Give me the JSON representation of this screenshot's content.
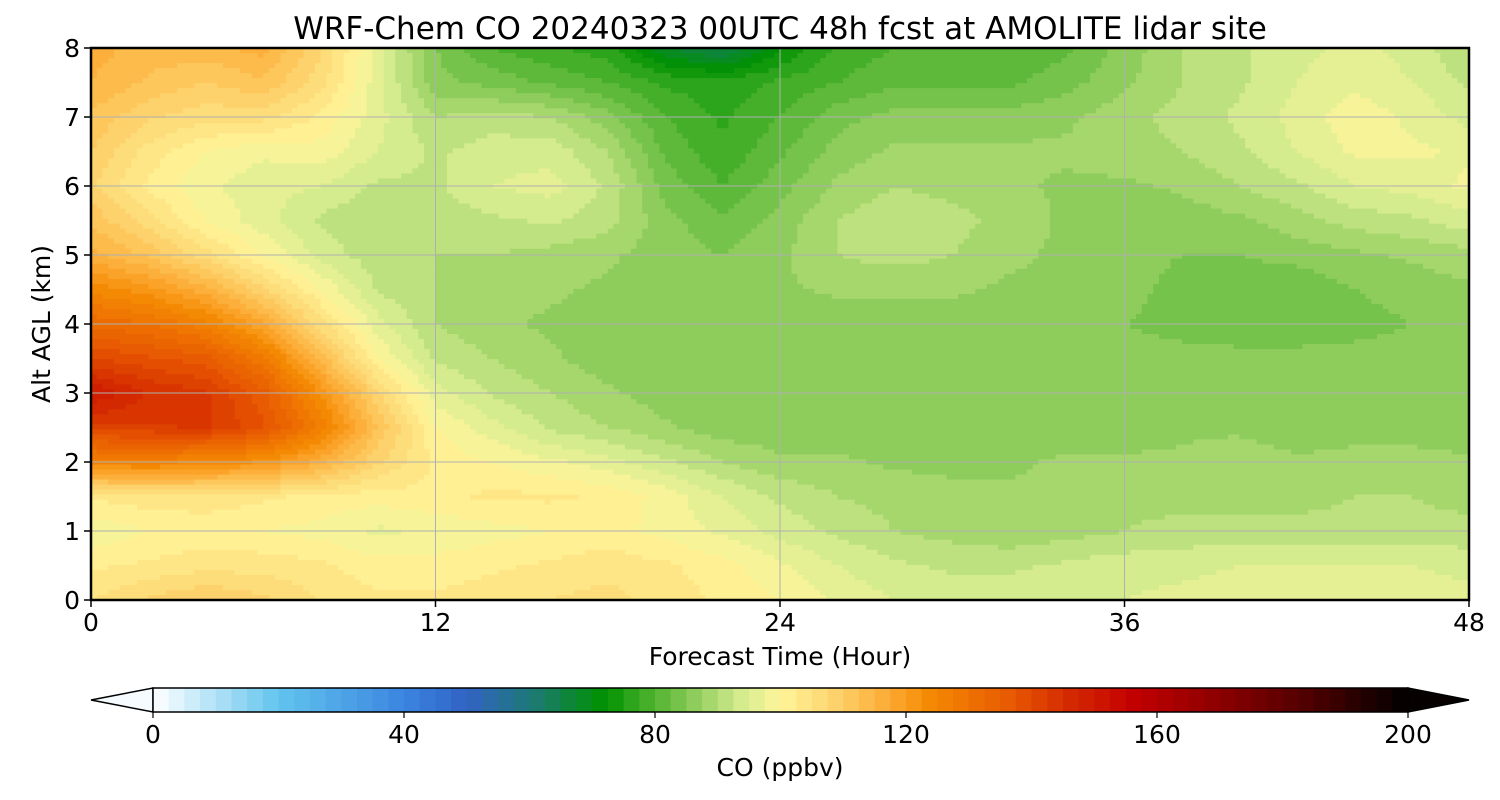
{
  "chart_data": {
    "type": "heatmap",
    "plot_kind": "filled-contour time-height cross-section",
    "title": "WRF-Chem CO  20240323 00UTC 48h fcst at AMOLITE lidar site",
    "xlabel": "Forecast Time (Hour)",
    "ylabel": "Alt AGL (km)",
    "xlim": [
      0,
      48
    ],
    "ylim": [
      0,
      8
    ],
    "xticks": [
      0,
      12,
      24,
      36,
      48
    ],
    "yticks": [
      0,
      1,
      2,
      3,
      4,
      5,
      6,
      7,
      8
    ],
    "grid": true,
    "x": [
      0,
      2,
      4,
      6,
      8,
      10,
      12,
      14,
      16,
      18,
      20,
      22,
      24,
      26,
      28,
      30,
      32,
      34,
      36,
      38,
      40,
      42,
      44,
      46,
      48
    ],
    "y": [
      0,
      0.5,
      1,
      1.5,
      2,
      2.5,
      3,
      3.5,
      4,
      4.5,
      5,
      5.5,
      6,
      6.5,
      7,
      7.5,
      8
    ],
    "z_units": "ppbv",
    "z": [
      [
        105,
        108,
        110,
        108,
        105,
        103,
        103,
        104,
        105,
        106,
        104,
        102,
        100,
        97,
        95,
        94,
        94,
        94,
        95,
        96,
        97,
        97,
        97,
        97,
        96
      ],
      [
        102,
        103,
        104,
        104,
        103,
        101,
        101,
        102,
        103,
        104,
        103,
        101,
        98,
        95,
        93,
        92,
        92,
        93,
        94,
        94,
        95,
        95,
        95,
        95,
        94
      ],
      [
        98,
        100,
        101,
        100,
        99,
        97,
        98,
        99,
        100,
        101,
        99,
        97,
        94,
        92,
        90,
        89,
        88,
        89,
        90,
        91,
        91,
        91,
        91,
        91,
        91
      ],
      [
        103,
        104,
        104,
        103,
        102,
        101,
        102,
        103,
        103,
        102,
        99,
        95,
        92,
        90,
        89,
        88,
        88,
        88,
        89,
        89,
        89,
        89,
        90,
        90,
        89
      ],
      [
        125,
        126,
        124,
        122,
        116,
        108,
        102,
        100,
        98,
        96,
        93,
        90,
        88,
        88,
        87,
        87,
        87,
        88,
        88,
        88,
        89,
        88,
        88,
        88,
        88
      ],
      [
        142,
        142,
        143,
        138,
        127,
        112,
        100,
        96,
        92,
        90,
        88,
        86,
        86,
        86,
        86,
        86,
        86,
        86,
        86,
        87,
        87,
        86,
        87,
        87,
        86
      ],
      [
        150,
        145,
        143,
        136,
        122,
        108,
        96,
        92,
        90,
        88,
        86,
        85,
        86,
        86,
        86,
        86,
        86,
        86,
        86,
        86,
        86,
        86,
        86,
        86,
        86
      ],
      [
        140,
        138,
        136,
        128,
        114,
        100,
        92,
        90,
        88,
        86,
        86,
        86,
        86,
        86,
        86,
        86,
        86,
        86,
        86,
        86,
        86,
        86,
        86,
        86,
        86
      ],
      [
        132,
        130,
        126,
        118,
        106,
        96,
        90,
        88,
        87,
        86,
        86,
        85,
        85,
        86,
        86,
        86,
        86,
        86,
        85,
        84,
        83,
        83,
        84,
        85,
        86
      ],
      [
        124,
        121,
        116,
        108,
        100,
        92,
        90,
        89,
        88,
        87,
        86,
        86,
        87,
        88,
        88,
        88,
        87,
        87,
        86,
        84,
        83,
        83,
        85,
        86,
        87
      ],
      [
        116,
        112,
        106,
        100,
        94,
        91,
        90,
        90,
        89,
        88,
        86,
        85,
        87,
        90,
        91,
        90,
        88,
        87,
        86,
        85,
        85,
        86,
        87,
        88,
        89
      ],
      [
        112,
        106,
        100,
        96,
        92,
        90,
        91,
        92,
        93,
        91,
        86,
        83,
        86,
        90,
        92,
        91,
        89,
        87,
        86,
        86,
        87,
        89,
        91,
        92,
        94
      ],
      [
        108,
        102,
        98,
        96,
        95,
        92,
        92,
        95,
        96,
        92,
        84,
        80,
        84,
        88,
        90,
        89,
        88,
        87,
        87,
        88,
        90,
        92,
        95,
        96,
        98
      ],
      [
        110,
        104,
        100,
        98,
        99,
        95,
        92,
        94,
        94,
        90,
        82,
        78,
        82,
        86,
        88,
        88,
        88,
        88,
        89,
        90,
        92,
        95,
        98,
        98,
        97
      ],
      [
        112,
        108,
        106,
        106,
        102,
        96,
        90,
        91,
        90,
        86,
        80,
        77,
        80,
        84,
        86,
        86,
        86,
        87,
        89,
        91,
        93,
        96,
        99,
        97,
        94
      ],
      [
        115,
        112,
        110,
        112,
        106,
        96,
        86,
        84,
        82,
        80,
        77,
        76,
        78,
        80,
        82,
        82,
        82,
        84,
        87,
        90,
        92,
        95,
        97,
        95,
        92
      ],
      [
        116,
        114,
        114,
        116,
        108,
        96,
        85,
        80,
        78,
        76,
        68,
        64,
        72,
        78,
        80,
        80,
        80,
        82,
        86,
        90,
        92,
        94,
        96,
        94,
        90
      ]
    ],
    "colorbar": {
      "label": "CO  (ppbv)",
      "ticks": [
        0,
        40,
        80,
        120,
        160,
        200
      ],
      "range": [
        0,
        200
      ],
      "levels_step": 2.5,
      "extend": "both",
      "colors": [
        {
          "v": 0,
          "c": "#ffffff"
        },
        {
          "v": 20,
          "c": "#62c4ee"
        },
        {
          "v": 40,
          "c": "#3a85e0"
        },
        {
          "v": 50,
          "c": "#3163c4"
        },
        {
          "v": 60,
          "c": "#1e7878"
        },
        {
          "v": 72,
          "c": "#009200"
        },
        {
          "v": 80,
          "c": "#52b432"
        },
        {
          "v": 88,
          "c": "#9fd468"
        },
        {
          "v": 94,
          "c": "#d6ec90"
        },
        {
          "v": 100,
          "c": "#fff59a"
        },
        {
          "v": 108,
          "c": "#fdd671"
        },
        {
          "v": 118,
          "c": "#fca72e"
        },
        {
          "v": 124,
          "c": "#f48802"
        },
        {
          "v": 136,
          "c": "#e85c02"
        },
        {
          "v": 146,
          "c": "#d42a00"
        },
        {
          "v": 156,
          "c": "#c40000"
        },
        {
          "v": 170,
          "c": "#8c0000"
        },
        {
          "v": 185,
          "c": "#4a0000"
        },
        {
          "v": 200,
          "c": "#000000"
        }
      ]
    }
  }
}
